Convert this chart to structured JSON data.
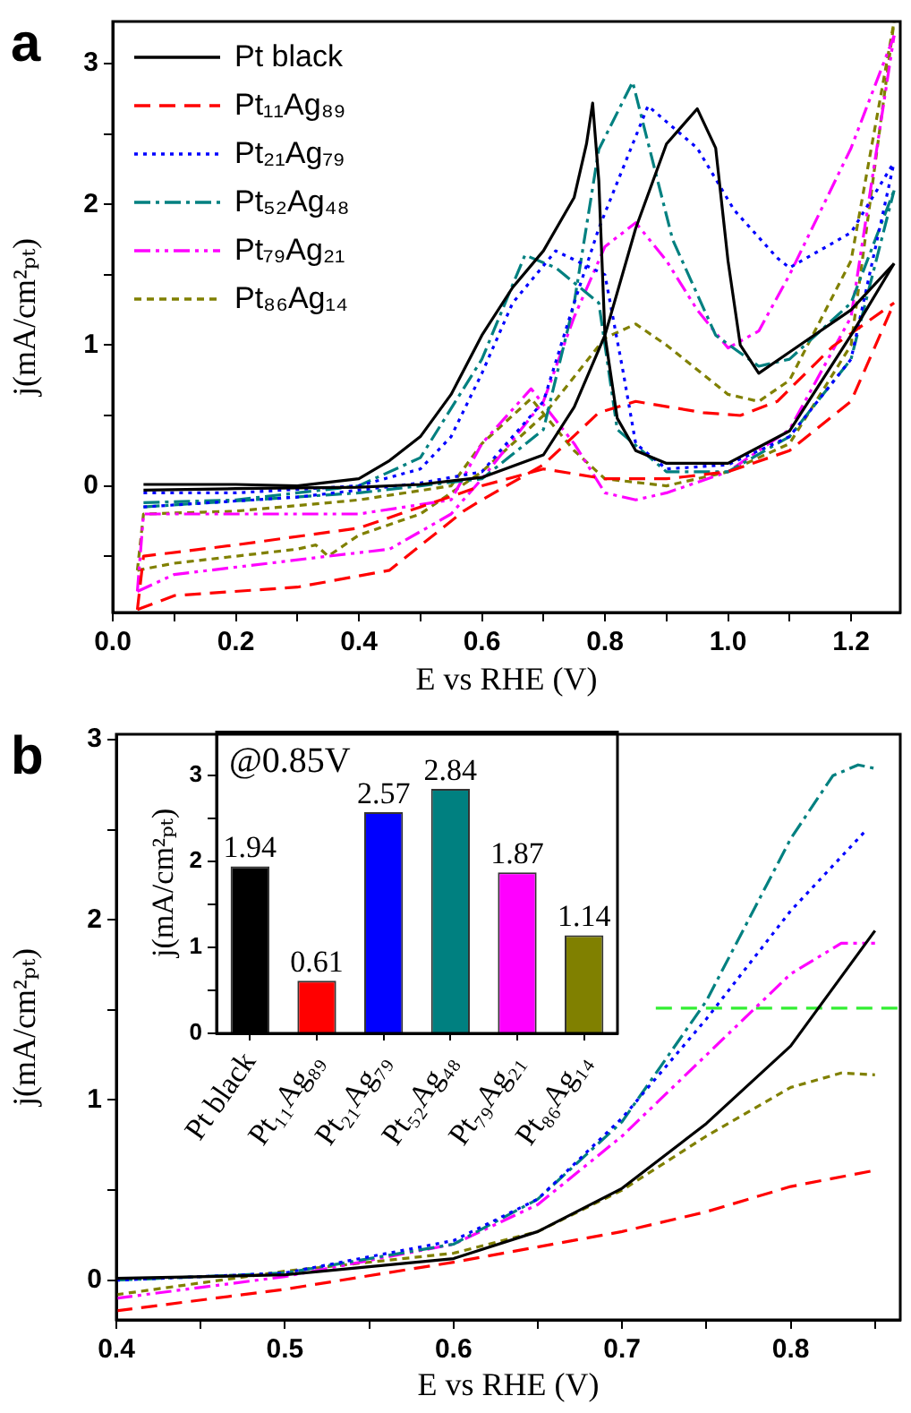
{
  "chart_data": [
    {
      "type": "line",
      "xlabel": "E vs RHE (V)",
      "ylabel": "j(mA/cm²ₚₜ)",
      "annotations": [
        "a"
      ],
      "legend": "top left",
      "xlim": [
        0,
        1.28
      ],
      "ylim": [
        -0.9,
        3.3
      ],
      "xticks": [
        {
          "value": 0,
          "label": "0.0"
        },
        {
          "value": 0.1,
          "label": null
        },
        {
          "value": 0.2,
          "label": "0.2"
        },
        {
          "value": 0.3,
          "label": null
        },
        {
          "value": 0.4,
          "label": "0.4"
        },
        {
          "value": 0.5,
          "label": null
        },
        {
          "value": 0.6,
          "label": "0.6"
        },
        {
          "value": 0.7,
          "label": null
        },
        {
          "value": 0.8,
          "label": "0.8"
        },
        {
          "value": 0.9,
          "label": null
        },
        {
          "value": 1.0,
          "label": "1.0"
        },
        {
          "value": 1.1,
          "label": null
        },
        {
          "value": 1.2,
          "label": "1.2"
        }
      ],
      "yticks": [
        {
          "value": -0.5,
          "label": null
        },
        0,
        {
          "value": 0.5,
          "label": null
        },
        1,
        {
          "value": 1.5,
          "label": null
        },
        2,
        {
          "value": 2.5,
          "label": null
        },
        3
      ],
      "series": [
        {
          "name": "Pt black",
          "color": "#000000",
          "line_style": "solid",
          "x": [
            0.05,
            0.2,
            0.4,
            0.5,
            0.6,
            0.7,
            0.75,
            0.8,
            0.85,
            0.9,
            0.95,
            0.98,
            1.0,
            1.02,
            1.05,
            1.1,
            1.2,
            1.27
          ],
          "values": [
            -0.03,
            -0.02,
            -0.01,
            0.01,
            0.06,
            0.22,
            0.56,
            1.07,
            1.83,
            2.43,
            2.68,
            2.4,
            1.6,
            1.0,
            0.8,
            0.95,
            1.25,
            1.58
          ]
        },
        {
          "color": "#000000",
          "line_style": "solid",
          "x": [
            0.05,
            0.2,
            0.3,
            0.4,
            0.45,
            0.5,
            0.55,
            0.6,
            0.65,
            0.7,
            0.75,
            0.77,
            0.78,
            0.79,
            0.8,
            0.82,
            0.85,
            0.9,
            1.0,
            1.1,
            1.2,
            1.27
          ],
          "values": [
            0.01,
            0.01,
            0.0,
            0.05,
            0.18,
            0.35,
            0.65,
            1.07,
            1.41,
            1.67,
            2.05,
            2.43,
            2.72,
            2.17,
            1.07,
            0.48,
            0.25,
            0.16,
            0.16,
            0.39,
            1.07,
            1.58
          ]
        },
        {
          "name": "Pt₁₁Ag₈₉",
          "color": "#ff0000",
          "line_style": "dashed",
          "x": [
            0.04,
            0.1,
            0.3,
            0.45,
            0.57,
            0.6,
            0.7,
            0.79,
            0.85,
            0.96,
            1.02,
            1.08,
            1.17,
            1.27
          ],
          "values": [
            -0.88,
            -0.78,
            -0.72,
            -0.6,
            -0.18,
            -0.1,
            0.15,
            0.52,
            0.6,
            0.52,
            0.5,
            0.6,
            0.99,
            1.3
          ]
        },
        {
          "color": "#ff0000",
          "line_style": "dashed",
          "x": [
            0.04,
            0.05,
            0.2,
            0.4,
            0.5,
            0.6,
            0.7,
            0.8,
            0.9,
            1.0,
            1.1,
            1.2,
            1.27
          ],
          "values": [
            -0.88,
            -0.5,
            -0.42,
            -0.3,
            -0.15,
            0.0,
            0.12,
            0.05,
            0.05,
            0.1,
            0.25,
            0.6,
            1.3
          ]
        },
        {
          "name": "Pt₂₁Ag₇₉",
          "color": "#0000ff",
          "line_style": "dotted",
          "x": [
            0.05,
            0.3,
            0.5,
            0.6,
            0.7,
            0.75,
            0.79,
            0.87,
            0.95,
            1.01,
            1.08,
            1.1,
            1.2,
            1.27
          ],
          "values": [
            -0.15,
            -0.08,
            0.02,
            0.1,
            0.6,
            1.3,
            1.83,
            2.7,
            2.4,
            1.96,
            1.62,
            1.55,
            1.8,
            2.3
          ]
        },
        {
          "color": "#0000ff",
          "line_style": "dotted",
          "x": [
            0.05,
            0.2,
            0.4,
            0.5,
            0.55,
            0.6,
            0.65,
            0.72,
            0.8,
            0.83,
            0.85,
            0.9,
            1.0,
            1.1,
            1.2,
            1.27
          ],
          "values": [
            -0.05,
            -0.05,
            0.0,
            0.12,
            0.35,
            0.8,
            1.3,
            1.67,
            1.5,
            0.8,
            0.3,
            0.12,
            0.15,
            0.35,
            0.9,
            2.3
          ]
        },
        {
          "name": "Pt₅₂Ag₄₈",
          "color": "#008080",
          "line_style": "dashdot",
          "x": [
            0.05,
            0.4,
            0.6,
            0.7,
            0.75,
            0.79,
            0.845,
            0.91,
            0.98,
            1.05,
            1.1,
            1.2,
            1.27
          ],
          "values": [
            -0.15,
            -0.05,
            0.05,
            0.4,
            1.3,
            2.39,
            2.87,
            1.75,
            1.07,
            0.85,
            0.9,
            1.3,
            2.1
          ]
        },
        {
          "color": "#008080",
          "line_style": "dashdot",
          "x": [
            0.05,
            0.2,
            0.4,
            0.5,
            0.6,
            0.67,
            0.72,
            0.79,
            0.82,
            0.9,
            1.0,
            1.1,
            1.2,
            1.27
          ],
          "values": [
            -0.12,
            -0.1,
            0.0,
            0.2,
            0.9,
            1.64,
            1.55,
            1.3,
            0.4,
            0.1,
            0.1,
            0.35,
            0.9,
            2.1
          ]
        },
        {
          "name": "Pt₇₉Ag₂₁",
          "color": "#ff00ff",
          "line_style": "dashdotdot",
          "x": [
            0.04,
            0.1,
            0.35,
            0.45,
            0.55,
            0.6,
            0.7,
            0.75,
            0.8,
            0.85,
            0.9,
            0.95,
            1.0,
            1.05,
            1.1,
            1.2,
            1.27
          ],
          "values": [
            -0.75,
            -0.63,
            -0.5,
            -0.45,
            -0.2,
            0.05,
            0.6,
            1.2,
            1.7,
            1.87,
            1.6,
            1.25,
            0.98,
            1.1,
            1.5,
            2.4,
            3.2
          ]
        },
        {
          "color": "#ff00ff",
          "line_style": "dashdotdot",
          "x": [
            0.04,
            0.05,
            0.2,
            0.4,
            0.55,
            0.6,
            0.68,
            0.75,
            0.8,
            0.85,
            0.9,
            1.0,
            1.1,
            1.2,
            1.27
          ],
          "values": [
            -0.75,
            -0.2,
            -0.2,
            -0.2,
            -0.1,
            0.3,
            0.69,
            0.3,
            -0.05,
            -0.1,
            -0.05,
            0.1,
            0.4,
            1.2,
            3.2
          ]
        },
        {
          "name": "Pt₈₆Ag₁₄",
          "color": "#808000",
          "line_style": "shortdash",
          "x": [
            0.04,
            0.1,
            0.3,
            0.33,
            0.35,
            0.4,
            0.5,
            0.6,
            0.7,
            0.8,
            0.85,
            0.9,
            1.0,
            1.05,
            1.1,
            1.2,
            1.27
          ],
          "values": [
            -0.6,
            -0.55,
            -0.45,
            -0.42,
            -0.5,
            -0.35,
            -0.2,
            0.1,
            0.5,
            1.05,
            1.15,
            1.0,
            0.65,
            0.6,
            0.75,
            1.6,
            3.3
          ]
        },
        {
          "color": "#808000",
          "line_style": "shortdash",
          "x": [
            0.04,
            0.05,
            0.2,
            0.4,
            0.55,
            0.6,
            0.68,
            0.75,
            0.8,
            0.9,
            1.0,
            1.1,
            1.2,
            1.27
          ],
          "values": [
            -0.6,
            -0.2,
            -0.18,
            -0.1,
            0.0,
            0.3,
            0.62,
            0.25,
            0.05,
            0.0,
            0.1,
            0.3,
            1.0,
            3.3
          ]
        }
      ]
    },
    {
      "type": "line",
      "xlabel": "E vs RHE (V)",
      "ylabel": "j(mA/cm²ₚₜ)",
      "annotations": [
        "b"
      ],
      "xlim": [
        0.4,
        0.865
      ],
      "ylim": [
        -0.22,
        3.03
      ],
      "xticks": [
        0.4,
        {
          "value": 0.45,
          "label": null
        },
        0.5,
        {
          "value": 0.55,
          "label": null
        },
        0.6,
        {
          "value": 0.65,
          "label": null
        },
        0.7,
        {
          "value": 0.75,
          "label": null
        },
        0.8,
        {
          "value": 0.85,
          "label": null
        }
      ],
      "yticks": [
        0,
        {
          "value": 0.5,
          "label": null
        },
        1,
        {
          "value": 1.5,
          "label": null
        },
        2,
        {
          "value": 2.5,
          "label": null
        },
        3
      ],
      "series": [
        {
          "color": "#000000",
          "line_style": "solid",
          "x": [
            0.4,
            0.5,
            0.6,
            0.65,
            0.7,
            0.75,
            0.8,
            0.85
          ],
          "values": [
            0.01,
            0.03,
            0.12,
            0.27,
            0.51,
            0.87,
            1.3,
            1.94
          ]
        },
        {
          "color": "#ff0000",
          "line_style": "dashed",
          "x": [
            0.4,
            0.5,
            0.6,
            0.7,
            0.75,
            0.8,
            0.85
          ],
          "values": [
            -0.17,
            -0.05,
            0.1,
            0.27,
            0.38,
            0.52,
            0.61
          ]
        },
        {
          "color": "#0000ff",
          "line_style": "dotted",
          "x": [
            0.4,
            0.5,
            0.6,
            0.65,
            0.7,
            0.75,
            0.8,
            0.845
          ],
          "values": [
            0.0,
            0.04,
            0.22,
            0.45,
            0.9,
            1.45,
            2.05,
            2.5
          ]
        },
        {
          "color": "#008080",
          "line_style": "dashdot",
          "x": [
            0.4,
            0.5,
            0.6,
            0.65,
            0.7,
            0.75,
            0.8,
            0.825,
            0.84,
            0.85
          ],
          "values": [
            0.0,
            0.04,
            0.2,
            0.45,
            0.88,
            1.55,
            2.45,
            2.8,
            2.86,
            2.84
          ]
        },
        {
          "color": "#ff00ff",
          "line_style": "dashdotdot",
          "x": [
            0.4,
            0.5,
            0.6,
            0.65,
            0.7,
            0.75,
            0.8,
            0.83,
            0.85
          ],
          "values": [
            -0.1,
            0.02,
            0.2,
            0.42,
            0.8,
            1.25,
            1.7,
            1.87,
            1.87
          ]
        },
        {
          "color": "#808000",
          "line_style": "shortdash",
          "x": [
            0.4,
            0.5,
            0.6,
            0.65,
            0.7,
            0.75,
            0.8,
            0.83,
            0.85
          ],
          "values": [
            -0.08,
            0.05,
            0.15,
            0.27,
            0.5,
            0.8,
            1.07,
            1.15,
            1.14
          ]
        },
        {
          "color": "#33ee33",
          "line_style": "dashed",
          "x": [
            0.72,
            0.865
          ],
          "values": [
            1.51,
            1.51
          ]
        }
      ]
    },
    {
      "type": "bar",
      "ylabel": "j(mA/cm²ₚₜ)",
      "annotations": [
        "@0.85V"
      ],
      "data_labels": true,
      "categories": [
        "Pt black",
        "Pt₁₁Ag₈₉",
        "Pt₂₁Ag₇₉",
        "Pt₅₂Ag₄₈",
        "Pt₇₉Ag₂₁",
        "Pt₈₆Ag₁₄"
      ],
      "values": [
        1.94,
        0.61,
        2.57,
        2.84,
        1.87,
        1.14
      ],
      "colors": [
        "#000000",
        "#ff0000",
        "#0000ff",
        "#008080",
        "#ff00ff",
        "#808000"
      ],
      "ylim": [
        0,
        3.5
      ],
      "yticks": [
        0,
        {
          "value": 0.5,
          "label": null
        },
        1,
        {
          "value": 1.5,
          "label": null
        },
        2,
        {
          "value": 2.5,
          "label": null
        },
        3
      ]
    }
  ]
}
